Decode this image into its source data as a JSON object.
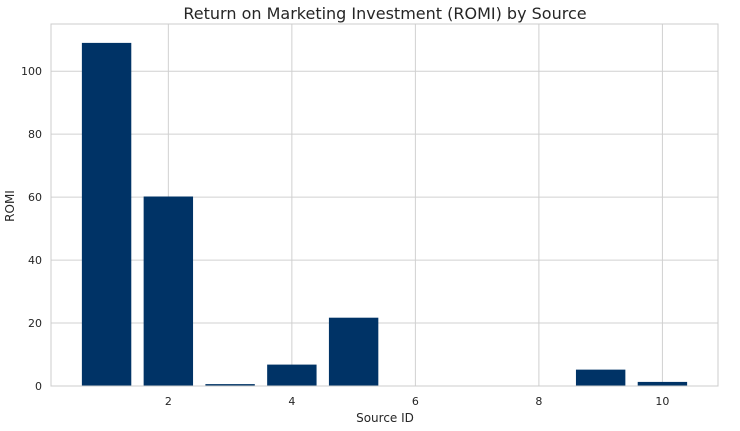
{
  "chart_data": {
    "type": "bar",
    "title": "Return on Marketing Investment (ROMI) by Source",
    "xlabel": "Source ID",
    "ylabel": "ROMI",
    "x": [
      1,
      2,
      3,
      4,
      5,
      6,
      7,
      8,
      9,
      10
    ],
    "values": [
      109,
      60.2,
      0.6,
      6.8,
      21.7,
      0,
      0,
      0,
      5.2,
      1.3
    ],
    "xlim": [
      0.1,
      10.9
    ],
    "ylim": [
      0,
      115
    ],
    "xticks": [
      2,
      4,
      6,
      8,
      10
    ],
    "yticks": [
      0,
      20,
      40,
      60,
      80,
      100
    ],
    "grid": true,
    "bar_color": "#003366",
    "grid_color": "#d0d0d0",
    "spine_color": "#cccccc"
  }
}
